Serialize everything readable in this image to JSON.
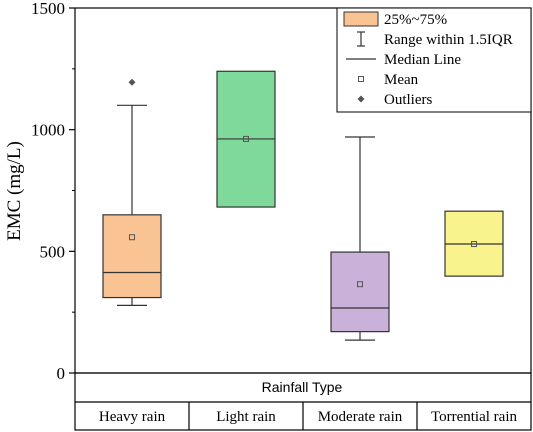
{
  "chart_data": {
    "type": "box",
    "title": "",
    "ylabel": "EMC (mg/L)",
    "xlabel": "Rainfall Type",
    "ylim": [
      0,
      1500
    ],
    "yticks": [
      0,
      500,
      1000,
      1500
    ],
    "categories": [
      "Heavy rain",
      "Light rain",
      "Moderate rain",
      "Torrential rain"
    ],
    "boxes": [
      {
        "category": "Heavy rain",
        "q1": 310,
        "median": 413,
        "q3": 650,
        "whisker_low": 278,
        "whisker_high": 1100,
        "mean": 558,
        "outliers": [
          1195
        ],
        "color": "#F9C393"
      },
      {
        "category": "Light rain",
        "q1": 682,
        "median": 962,
        "q3": 1240,
        "whisker_low": null,
        "whisker_high": null,
        "mean": 962,
        "outliers": [],
        "color": "#7FD99A"
      },
      {
        "category": "Moderate rain",
        "q1": 170,
        "median": 267,
        "q3": 497,
        "whisker_low": 135,
        "whisker_high": 970,
        "mean": 365,
        "outliers": [],
        "color": "#C9B1DA"
      },
      {
        "category": "Torrential rain",
        "q1": 398,
        "median": 530,
        "q3": 665,
        "whisker_low": null,
        "whisker_high": null,
        "mean": 530,
        "outliers": [],
        "color": "#F8F38C"
      }
    ],
    "legend": {
      "position": "top-right",
      "items": [
        {
          "key": "box",
          "label": "25%~75%"
        },
        {
          "key": "whisker",
          "label": "Range within 1.5IQR"
        },
        {
          "key": "median",
          "label": "Median Line"
        },
        {
          "key": "mean",
          "label": "Mean"
        },
        {
          "key": "outlier",
          "label": "Outliers"
        }
      ]
    },
    "grid": false
  }
}
